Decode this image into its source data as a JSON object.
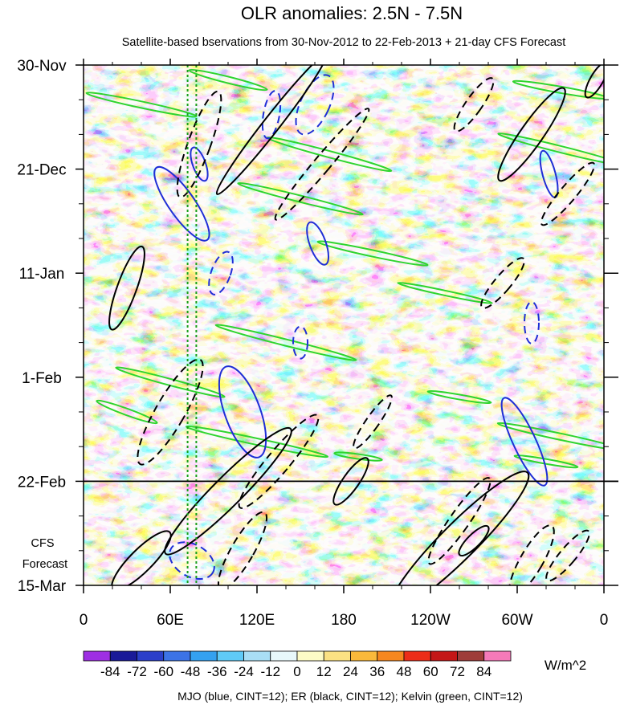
{
  "chart_data": {
    "type": "heatmap",
    "title": "OLR anomalies: 2.5N - 7.5N",
    "subtitle": "Satellite-based bservations from 30-Nov-2012 to 22-Feb-2013 + 21-day CFS Forecast",
    "x_tick_labels": [
      "0",
      "60E",
      "120E",
      "180",
      "120W",
      "60W",
      "0"
    ],
    "x_ticks_deg": [
      0,
      60,
      120,
      180,
      240,
      300,
      360
    ],
    "xlim_deg": [
      0,
      360
    ],
    "y_tick_labels": [
      "30-Nov",
      "21-Dec",
      "11-Jan",
      "1-Feb",
      "22-Feb",
      "15-Mar"
    ],
    "y_ticks_day": [
      0,
      21,
      42,
      63,
      84,
      105
    ],
    "ylim_day": [
      0,
      105
    ],
    "forecast_start_label": "22-Feb",
    "forecast_label_line1": "CFS",
    "forecast_label_line2": "Forecast",
    "colorbar": {
      "labels": [
        "-84",
        "-72",
        "-60",
        "-48",
        "-36",
        "-24",
        "-12",
        "0",
        "12",
        "24",
        "36",
        "48",
        "60",
        "72",
        "84"
      ],
      "colors": [
        "#9e2fe3",
        "#1a1a98",
        "#2b3fc9",
        "#3c73e6",
        "#34a1f0",
        "#5fcaf7",
        "#a9def5",
        "#e8f8fa",
        "#fdfbc6",
        "#fbe183",
        "#f9b93b",
        "#f6871f",
        "#ec2d19",
        "#c41717",
        "#9e3d3a",
        "#f57ab9"
      ],
      "units": "W/m^2"
    },
    "footnote": "MJO (blue, CINT=12); ER (black, CINT=12); Kelvin (green, CINT=12)",
    "colors": {
      "mjo": "#1f2ed6",
      "er": "#000000",
      "kelvin": "#2fd42f",
      "forecast_line": "#1a9f1a"
    }
  }
}
